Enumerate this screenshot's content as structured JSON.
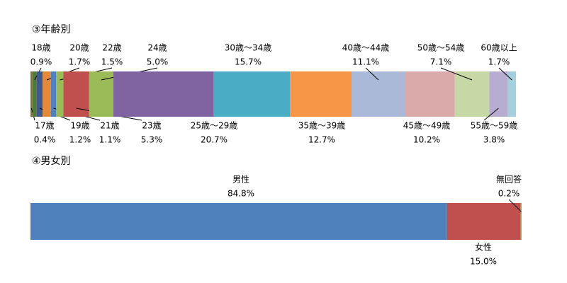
{
  "chart_data": [
    {
      "type": "stacked-bar",
      "title": "③年齢別",
      "categories": [
        "17歳",
        "18歳",
        "19歳",
        "20歳",
        "21歳",
        "22歳",
        "23歳",
        "24歳",
        "25歳～29歳",
        "30歳～34歳",
        "35歳～39歳",
        "40歳～44歳",
        "45歳～49歳",
        "50歳～54歳",
        "55歳～59歳",
        "60歳以上"
      ],
      "values": [
        0.4,
        0.9,
        1.2,
        1.7,
        1.1,
        1.5,
        5.3,
        5.0,
        20.7,
        15.7,
        12.7,
        11.1,
        10.2,
        7.1,
        3.8,
        1.7
      ],
      "value_labels": [
        "0.4%",
        "0.9%",
        "1.2%",
        "1.7%",
        "1.1%",
        "1.5%",
        "5.3%",
        "5.0%",
        "20.7%",
        "15.7%",
        "12.7%",
        "11.1%",
        "10.2%",
        "7.1%",
        "3.8%",
        "1.7%"
      ],
      "colors": [
        "#8c6d3f",
        "#4f7a3a",
        "#3f5a8a",
        "#e28a3a",
        "#4f81bd",
        "#9bbb59",
        "#c0504d",
        "#9bbb59",
        "#8064a2",
        "#4bacc6",
        "#f79646",
        "#aab9d8",
        "#d9aaa9",
        "#c5d8a6",
        "#b7add0",
        "#a4cfdc"
      ]
    },
    {
      "type": "stacked-bar",
      "title": "④男女別",
      "categories": [
        "男性",
        "女性",
        "無回答"
      ],
      "values": [
        84.8,
        15.0,
        0.2
      ],
      "value_labels": [
        "84.8%",
        "15.0%",
        "0.2%"
      ],
      "colors": [
        "#4f81bd",
        "#c0504d",
        "#9bbb59"
      ]
    }
  ]
}
